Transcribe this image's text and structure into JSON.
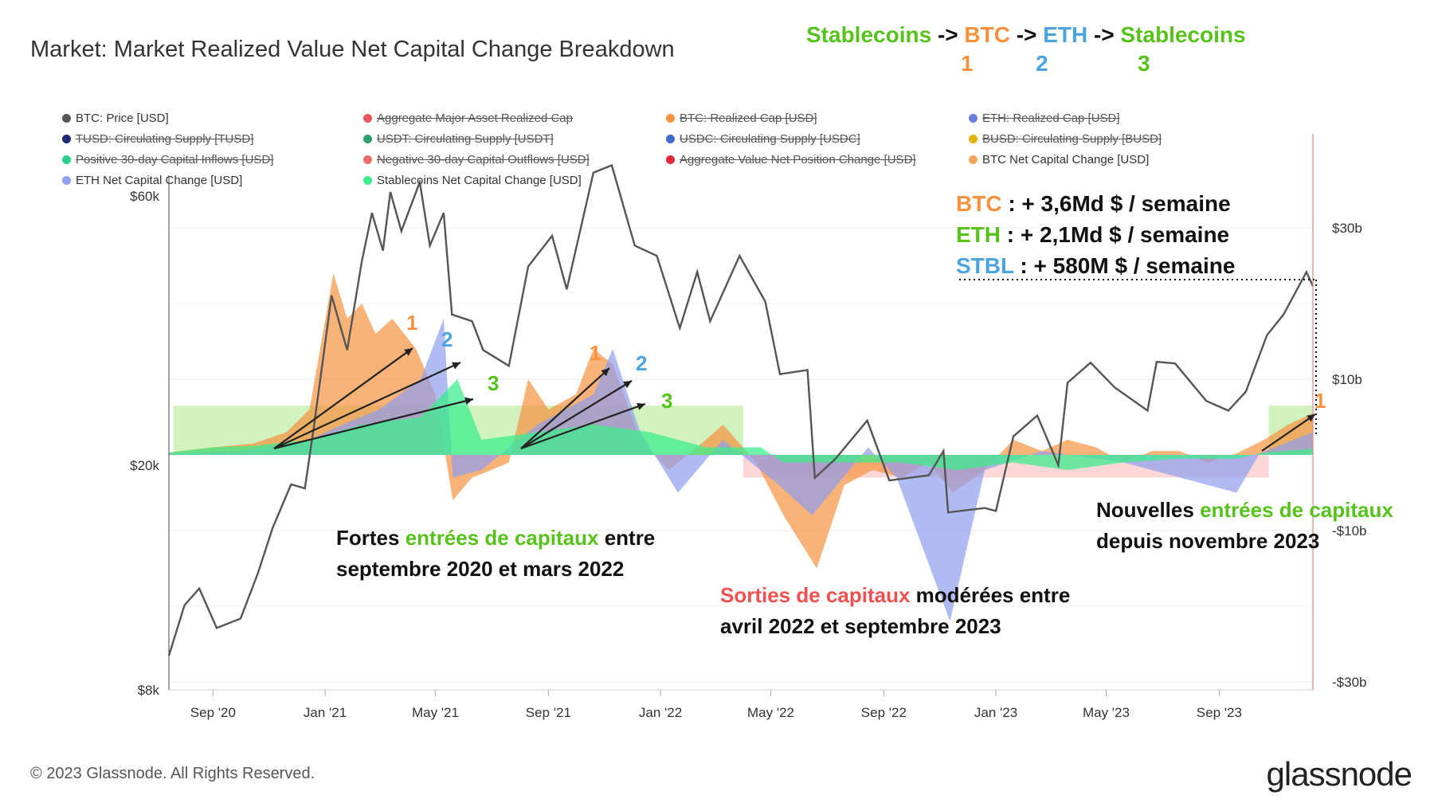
{
  "title": "Market: Market Realized Value Net Capital Change Breakdown",
  "flow": {
    "parts": [
      {
        "text": "Stablecoins",
        "color": "#56c21b"
      },
      {
        "text": " -> ",
        "color": "#111111"
      },
      {
        "text": "BTC",
        "color": "#f7913d"
      },
      {
        "text": " -> ",
        "color": "#111111"
      },
      {
        "text": "ETH",
        "color": "#4ba3e0"
      },
      {
        "text": " -> ",
        "color": "#111111"
      },
      {
        "text": "Stablecoins",
        "color": "#56c21b"
      }
    ],
    "numbers": [
      "1",
      "2",
      "3"
    ]
  },
  "legend": [
    {
      "label": "BTC: Price [USD]",
      "color": "#555555",
      "active": true
    },
    {
      "label": "Aggregate Major Asset Realized Cap",
      "color": "#e8585a",
      "active": false
    },
    {
      "label": "BTC: Realized Cap [USD]",
      "color": "#f7913d",
      "active": false
    },
    {
      "label": "ETH: Realized Cap [USD]",
      "color": "#6b7fe0",
      "active": false
    },
    {
      "label": "TUSD: Circulating Supply [TUSD]",
      "color": "#1f2a78",
      "active": false
    },
    {
      "label": "USDT: Circulating Supply [USDT]",
      "color": "#2e9e6d",
      "active": false
    },
    {
      "label": "USDC: Circulating Supply [USDC]",
      "color": "#4169c9",
      "active": false
    },
    {
      "label": "BUSD: Circulating Supply [BUSD]",
      "color": "#e0b400",
      "active": false
    },
    {
      "label": "Positive 30-day Capital Inflows [USD]",
      "color": "#2fcf8a",
      "active": false
    },
    {
      "label": "Negative 30-day Capital Outflows [USD]",
      "color": "#ee6b6b",
      "active": false
    },
    {
      "label": "Aggregate Value Net Position Change [USD]",
      "color": "#e0283a",
      "active": false
    },
    {
      "label": "BTC Net Capital Change [USD]",
      "color": "#f7a45a",
      "active": true
    },
    {
      "label": "ETH Net Capital Change [USD]",
      "color": "#8f9ef0",
      "active": true
    },
    {
      "label": "Stablecoins Net Capital Change [USD]",
      "color": "#3dec8c",
      "active": true
    }
  ],
  "annotations": {
    "inflow_block": {
      "parts1": [
        {
          "text": "Fortes ",
          "color": "#111111"
        },
        {
          "text": "entrées de capitaux",
          "color": "#56c21b"
        },
        {
          "text": " entre",
          "color": "#111111"
        }
      ],
      "line2": "septembre 2020 et mars 2022"
    },
    "outflow_block": {
      "parts1": [
        {
          "text": "Sorties de capitaux",
          "color": "#f05050"
        },
        {
          "text": " modérées entre",
          "color": "#111111"
        }
      ],
      "line2": "avril 2022 et septembre 2023"
    },
    "new_block": {
      "parts1": [
        {
          "text": "Nouvelles ",
          "color": "#111111"
        },
        {
          "text": "entrées de capitaux",
          "color": "#56c21b"
        }
      ],
      "line2": "depuis novembre 2023"
    },
    "labels_1": "1",
    "labels_2": "2",
    "labels_3": "3"
  },
  "stats": [
    {
      "asset": "BTC",
      "asset_color": "#f7913d",
      "value": " : + 3,6Md $ / semaine"
    },
    {
      "asset": "ETH",
      "asset_color": "#56c21b",
      "value": " : + 2,1Md $ / semaine"
    },
    {
      "asset": "STBL",
      "asset_color": "#4ba3e0",
      "value": " : + 580M $ / semaine"
    }
  ],
  "colors": {
    "price": "#555555",
    "btc": "#f7913d",
    "eth": "#8f9ef0",
    "stable": "#3dec8c",
    "inflow_zone": "#c9efb3",
    "outflow_zone": "#fbd0d0",
    "cursor": "#f08080"
  },
  "footer": "© 2023 Glassnode. All Rights Reserved.",
  "brand": "glassnode",
  "chart_data": {
    "type": "line",
    "left_axis": {
      "label": "",
      "scale": "log",
      "ticks": [
        "$8k",
        "$20k",
        "$60k"
      ],
      "tick_values": [
        8000,
        20000,
        60000
      ]
    },
    "right_axis": {
      "label": "",
      "ticks": [
        "$30b",
        "$10b",
        "-$10b",
        "-$30b"
      ],
      "tick_values": [
        30,
        10,
        -10,
        -30
      ],
      "ylim": [
        -30,
        30
      ]
    },
    "x_ticks": [
      "Sep '20",
      "Jan '21",
      "May '21",
      "Sep '21",
      "Jan '22",
      "May '22",
      "Sep '22",
      "Jan '23",
      "May '23",
      "Sep '23"
    ],
    "x_range": [
      "2020-07-15",
      "2023-12-12"
    ],
    "price_series": {
      "name": "BTC: Price [USD]",
      "points": [
        [
          "2020-07-15",
          9200
        ],
        [
          "2020-08-01",
          11300
        ],
        [
          "2020-08-17",
          12100
        ],
        [
          "2020-09-05",
          10300
        ],
        [
          "2020-10-01",
          10700
        ],
        [
          "2020-10-20",
          12900
        ],
        [
          "2020-11-05",
          15500
        ],
        [
          "2020-11-25",
          18500
        ],
        [
          "2020-12-10",
          18200
        ],
        [
          "2020-12-20",
          23500
        ],
        [
          "2021-01-08",
          40000
        ],
        [
          "2021-01-25",
          32000
        ],
        [
          "2021-02-10",
          46000
        ],
        [
          "2021-02-21",
          56000
        ],
        [
          "2021-03-05",
          48000
        ],
        [
          "2021-03-13",
          61000
        ],
        [
          "2021-03-25",
          52000
        ],
        [
          "2021-04-14",
          63500
        ],
        [
          "2021-04-25",
          49000
        ],
        [
          "2021-05-10",
          56000
        ],
        [
          "2021-05-19",
          37000
        ],
        [
          "2021-06-10",
          36000
        ],
        [
          "2021-06-22",
          32000
        ],
        [
          "2021-07-20",
          30000
        ],
        [
          "2021-08-10",
          45000
        ],
        [
          "2021-09-05",
          51000
        ],
        [
          "2021-09-21",
          41000
        ],
        [
          "2021-10-20",
          66000
        ],
        [
          "2021-11-09",
          68000
        ],
        [
          "2021-12-04",
          49000
        ],
        [
          "2021-12-28",
          47000
        ],
        [
          "2022-01-22",
          35000
        ],
        [
          "2022-02-10",
          44000
        ],
        [
          "2022-02-24",
          36000
        ],
        [
          "2022-03-28",
          47000
        ],
        [
          "2022-04-25",
          39000
        ],
        [
          "2022-05-11",
          29000
        ],
        [
          "2022-06-10",
          29500
        ],
        [
          "2022-06-18",
          19000
        ],
        [
          "2022-07-10",
          20500
        ],
        [
          "2022-08-14",
          24000
        ],
        [
          "2022-09-07",
          18800
        ],
        [
          "2022-10-20",
          19200
        ],
        [
          "2022-11-05",
          21200
        ],
        [
          "2022-11-10",
          16500
        ],
        [
          "2022-12-20",
          16800
        ],
        [
          "2023-01-01",
          16600
        ],
        [
          "2023-01-20",
          22500
        ],
        [
          "2023-02-15",
          24500
        ],
        [
          "2023-03-10",
          20000
        ],
        [
          "2023-03-20",
          28000
        ],
        [
          "2023-04-14",
          30400
        ],
        [
          "2023-05-10",
          27500
        ],
        [
          "2023-06-15",
          25000
        ],
        [
          "2023-06-25",
          30500
        ],
        [
          "2023-07-15",
          30300
        ],
        [
          "2023-08-18",
          26000
        ],
        [
          "2023-09-11",
          25000
        ],
        [
          "2023-09-30",
          27000
        ],
        [
          "2023-10-23",
          34000
        ],
        [
          "2023-11-10",
          37000
        ],
        [
          "2023-12-05",
          44000
        ],
        [
          "2023-12-12",
          41500
        ]
      ]
    },
    "flow_series": [
      {
        "name": "BTC Net Capital Change [USD]",
        "unit": "USD bn",
        "points": [
          [
            "2020-07-15",
            0.3
          ],
          [
            "2020-09-01",
            1.0
          ],
          [
            "2020-10-15",
            1.5
          ],
          [
            "2020-11-20",
            3
          ],
          [
            "2020-12-15",
            6
          ],
          [
            "2021-01-10",
            24
          ],
          [
            "2021-01-25",
            18
          ],
          [
            "2021-02-10",
            20
          ],
          [
            "2021-02-25",
            16
          ],
          [
            "2021-03-15",
            18
          ],
          [
            "2021-04-10",
            14
          ],
          [
            "2021-05-01",
            8
          ],
          [
            "2021-05-20",
            -6
          ],
          [
            "2021-06-10",
            -3
          ],
          [
            "2021-07-01",
            -2
          ],
          [
            "2021-07-20",
            -1
          ],
          [
            "2021-08-10",
            10
          ],
          [
            "2021-09-01",
            6
          ],
          [
            "2021-10-01",
            8
          ],
          [
            "2021-10-20",
            14
          ],
          [
            "2021-11-10",
            12
          ],
          [
            "2021-12-10",
            2
          ],
          [
            "2022-01-10",
            -2
          ],
          [
            "2022-02-10",
            1
          ],
          [
            "2022-03-10",
            4
          ],
          [
            "2022-04-15",
            -1
          ],
          [
            "2022-05-15",
            -8
          ],
          [
            "2022-06-20",
            -15
          ],
          [
            "2022-07-20",
            -4
          ],
          [
            "2022-08-20",
            -2
          ],
          [
            "2022-09-20",
            -3
          ],
          [
            "2022-10-20",
            -1
          ],
          [
            "2022-11-15",
            -5
          ],
          [
            "2022-12-20",
            -2
          ],
          [
            "2023-01-20",
            2
          ],
          [
            "2023-02-20",
            0.5
          ],
          [
            "2023-03-20",
            2
          ],
          [
            "2023-04-20",
            1
          ],
          [
            "2023-05-20",
            -1
          ],
          [
            "2023-06-20",
            0.5
          ],
          [
            "2023-07-20",
            0.5
          ],
          [
            "2023-08-20",
            -1
          ],
          [
            "2023-09-20",
            0.2
          ],
          [
            "2023-10-20",
            2
          ],
          [
            "2023-11-15",
            4
          ],
          [
            "2023-12-12",
            5.5
          ]
        ]
      },
      {
        "name": "ETH Net Capital Change [USD]",
        "unit": "USD bn",
        "points": [
          [
            "2020-07-15",
            0.2
          ],
          [
            "2020-10-01",
            0.5
          ],
          [
            "2020-12-15",
            2
          ],
          [
            "2021-01-20",
            4
          ],
          [
            "2021-03-01",
            6
          ],
          [
            "2021-04-15",
            10
          ],
          [
            "2021-05-10",
            18
          ],
          [
            "2021-05-20",
            -3
          ],
          [
            "2021-06-20",
            -2
          ],
          [
            "2021-08-20",
            4
          ],
          [
            "2021-10-20",
            8
          ],
          [
            "2021-11-10",
            14
          ],
          [
            "2021-12-10",
            3
          ],
          [
            "2022-01-20",
            -5
          ],
          [
            "2022-03-10",
            2
          ],
          [
            "2022-05-10",
            -4
          ],
          [
            "2022-06-15",
            -8
          ],
          [
            "2022-08-15",
            1
          ],
          [
            "2022-09-15",
            -3
          ],
          [
            "2022-11-12",
            -22
          ],
          [
            "2022-12-20",
            -2
          ],
          [
            "2023-02-20",
            0.5
          ],
          [
            "2023-05-20",
            -1
          ],
          [
            "2023-09-20",
            -5
          ],
          [
            "2023-10-15",
            0.2
          ],
          [
            "2023-12-12",
            3
          ]
        ]
      },
      {
        "name": "Stablecoins Net Capital Change [USD]",
        "unit": "USD bn",
        "points": [
          [
            "2020-07-15",
            0.3
          ],
          [
            "2020-09-01",
            1.0
          ],
          [
            "2020-10-15",
            1.2
          ],
          [
            "2020-12-15",
            2
          ],
          [
            "2021-02-10",
            4
          ],
          [
            "2021-04-15",
            5
          ],
          [
            "2021-05-25",
            10
          ],
          [
            "2021-06-20",
            2
          ],
          [
            "2021-08-20",
            3
          ],
          [
            "2021-10-20",
            4
          ],
          [
            "2021-12-20",
            3
          ],
          [
            "2022-02-20",
            1
          ],
          [
            "2022-04-20",
            1
          ],
          [
            "2022-05-15",
            -1
          ],
          [
            "2022-07-20",
            -1
          ],
          [
            "2022-09-20",
            -1
          ],
          [
            "2022-11-20",
            -2
          ],
          [
            "2023-01-20",
            -1
          ],
          [
            "2023-03-20",
            -2
          ],
          [
            "2023-05-20",
            -1
          ],
          [
            "2023-07-20",
            -0.5
          ],
          [
            "2023-09-20",
            -0.5
          ],
          [
            "2023-10-20",
            0.3
          ],
          [
            "2023-12-12",
            0.8
          ]
        ]
      }
    ],
    "zones": [
      {
        "type": "inflow",
        "from": "2020-07-20",
        "to": "2022-04-01"
      },
      {
        "type": "outflow",
        "from": "2022-04-01",
        "to": "2023-10-25"
      },
      {
        "type": "inflow",
        "from": "2023-10-25",
        "to": "2023-12-12"
      }
    ],
    "grid": true
  }
}
